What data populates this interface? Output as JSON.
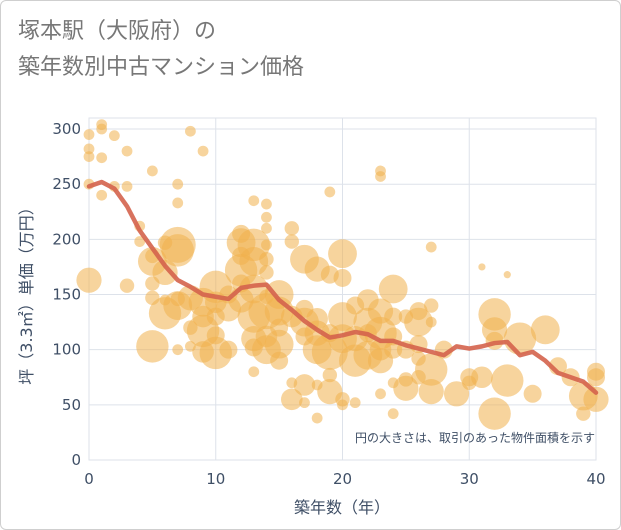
{
  "chart_data": {
    "type": "scatter",
    "title_line1": "塚本駅（大阪府）の",
    "title_line2": "築年数別中古マンション価格",
    "xlabel": "築年数（年）",
    "ylabel": "坪（3.3㎡）単価（万円）",
    "note": "円の大きさは、取引のあった物件面積を示す",
    "xlim": [
      0,
      40
    ],
    "ylim": [
      0,
      310
    ],
    "x_ticks": [
      0,
      10,
      20,
      30,
      40
    ],
    "y_ticks": [
      0,
      50,
      100,
      150,
      200,
      250,
      300
    ],
    "grid": true,
    "colors": {
      "bubble": "#f0b04c",
      "trend": "#d4634c",
      "grid": "#dde2ea",
      "text": "#3f4f66"
    },
    "trend_line": {
      "x": [
        0,
        1,
        2,
        3,
        4,
        5,
        6,
        7,
        8,
        9,
        10,
        11,
        12,
        13,
        14,
        15,
        16,
        17,
        18,
        19,
        20,
        21,
        22,
        23,
        24,
        25,
        26,
        27,
        28,
        29,
        30,
        31,
        32,
        33,
        34,
        35,
        36,
        37,
        38,
        39,
        40
      ],
      "y": [
        248,
        252,
        246,
        230,
        208,
        192,
        176,
        163,
        157,
        150,
        148,
        146,
        156,
        158,
        159,
        145,
        136,
        126,
        118,
        111,
        113,
        116,
        114,
        108,
        108,
        104,
        101,
        98,
        95,
        103,
        101,
        103,
        106,
        107,
        95,
        98,
        90,
        79,
        75,
        71,
        61
      ]
    },
    "points": [
      {
        "x": 0,
        "y": 295,
        "s": 3
      },
      {
        "x": 0,
        "y": 282,
        "s": 3
      },
      {
        "x": 0,
        "y": 275,
        "s": 3
      },
      {
        "x": 0,
        "y": 250,
        "s": 3
      },
      {
        "x": 0,
        "y": 163,
        "s": 7
      },
      {
        "x": 1,
        "y": 304,
        "s": 3
      },
      {
        "x": 1,
        "y": 300,
        "s": 3
      },
      {
        "x": 1,
        "y": 274,
        "s": 3
      },
      {
        "x": 1,
        "y": 240,
        "s": 3
      },
      {
        "x": 2,
        "y": 294,
        "s": 3
      },
      {
        "x": 2,
        "y": 248,
        "s": 3
      },
      {
        "x": 3,
        "y": 280,
        "s": 3
      },
      {
        "x": 3,
        "y": 248,
        "s": 3
      },
      {
        "x": 3,
        "y": 158,
        "s": 4
      },
      {
        "x": 4,
        "y": 212,
        "s": 3
      },
      {
        "x": 4,
        "y": 198,
        "s": 3
      },
      {
        "x": 5,
        "y": 262,
        "s": 3
      },
      {
        "x": 5,
        "y": 185,
        "s": 4
      },
      {
        "x": 5,
        "y": 180,
        "s": 8
      },
      {
        "x": 5,
        "y": 160,
        "s": 4
      },
      {
        "x": 5,
        "y": 147,
        "s": 4
      },
      {
        "x": 5,
        "y": 103,
        "s": 9
      },
      {
        "x": 6,
        "y": 197,
        "s": 4
      },
      {
        "x": 6,
        "y": 170,
        "s": 7
      },
      {
        "x": 6,
        "y": 145,
        "s": 3
      },
      {
        "x": 6,
        "y": 133,
        "s": 9
      },
      {
        "x": 7,
        "y": 250,
        "s": 3
      },
      {
        "x": 7,
        "y": 233,
        "s": 3
      },
      {
        "x": 7,
        "y": 195,
        "s": 10
      },
      {
        "x": 7,
        "y": 190,
        "s": 9
      },
      {
        "x": 7,
        "y": 146,
        "s": 4
      },
      {
        "x": 7,
        "y": 140,
        "s": 8
      },
      {
        "x": 7,
        "y": 100,
        "s": 3
      },
      {
        "x": 8,
        "y": 298,
        "s": 3
      },
      {
        "x": 8,
        "y": 147,
        "s": 7
      },
      {
        "x": 8,
        "y": 120,
        "s": 4
      },
      {
        "x": 8,
        "y": 103,
        "s": 3
      },
      {
        "x": 9,
        "y": 280,
        "s": 3
      },
      {
        "x": 9,
        "y": 143,
        "s": 8
      },
      {
        "x": 9,
        "y": 130,
        "s": 6
      },
      {
        "x": 9,
        "y": 117,
        "s": 9
      },
      {
        "x": 9,
        "y": 98,
        "s": 6
      },
      {
        "x": 10,
        "y": 157,
        "s": 9
      },
      {
        "x": 10,
        "y": 143,
        "s": 6
      },
      {
        "x": 10,
        "y": 130,
        "s": 5
      },
      {
        "x": 10,
        "y": 113,
        "s": 5
      },
      {
        "x": 10,
        "y": 97,
        "s": 9
      },
      {
        "x": 11,
        "y": 150,
        "s": 5
      },
      {
        "x": 11,
        "y": 137,
        "s": 7
      },
      {
        "x": 11,
        "y": 100,
        "s": 5
      },
      {
        "x": 12,
        "y": 205,
        "s": 5
      },
      {
        "x": 12,
        "y": 197,
        "s": 8
      },
      {
        "x": 12,
        "y": 185,
        "s": 5
      },
      {
        "x": 12,
        "y": 172,
        "s": 9
      },
      {
        "x": 12,
        "y": 160,
        "s": 5
      },
      {
        "x": 12,
        "y": 145,
        "s": 7
      },
      {
        "x": 13,
        "y": 235,
        "s": 3
      },
      {
        "x": 13,
        "y": 195,
        "s": 9
      },
      {
        "x": 13,
        "y": 180,
        "s": 8
      },
      {
        "x": 13,
        "y": 155,
        "s": 8
      },
      {
        "x": 13,
        "y": 130,
        "s": 9
      },
      {
        "x": 13,
        "y": 110,
        "s": 7
      },
      {
        "x": 13,
        "y": 102,
        "s": 5
      },
      {
        "x": 13,
        "y": 80,
        "s": 3
      },
      {
        "x": 14,
        "y": 232,
        "s": 3
      },
      {
        "x": 14,
        "y": 220,
        "s": 3
      },
      {
        "x": 14,
        "y": 210,
        "s": 3
      },
      {
        "x": 14,
        "y": 195,
        "s": 3
      },
      {
        "x": 14,
        "y": 182,
        "s": 4
      },
      {
        "x": 14,
        "y": 170,
        "s": 4
      },
      {
        "x": 14,
        "y": 148,
        "s": 4
      },
      {
        "x": 14,
        "y": 135,
        "s": 10
      },
      {
        "x": 14,
        "y": 112,
        "s": 6
      },
      {
        "x": 14,
        "y": 100,
        "s": 8
      },
      {
        "x": 15,
        "y": 150,
        "s": 8
      },
      {
        "x": 15,
        "y": 135,
        "s": 8
      },
      {
        "x": 15,
        "y": 120,
        "s": 5
      },
      {
        "x": 15,
        "y": 105,
        "s": 8
      },
      {
        "x": 15,
        "y": 90,
        "s": 5
      },
      {
        "x": 16,
        "y": 210,
        "s": 4
      },
      {
        "x": 16,
        "y": 198,
        "s": 4
      },
      {
        "x": 16,
        "y": 130,
        "s": 6
      },
      {
        "x": 16,
        "y": 70,
        "s": 3
      },
      {
        "x": 16,
        "y": 55,
        "s": 6
      },
      {
        "x": 17,
        "y": 182,
        "s": 8
      },
      {
        "x": 17,
        "y": 137,
        "s": 5
      },
      {
        "x": 17,
        "y": 125,
        "s": 8
      },
      {
        "x": 17,
        "y": 112,
        "s": 5
      },
      {
        "x": 17,
        "y": 68,
        "s": 6
      },
      {
        "x": 17,
        "y": 52,
        "s": 3
      },
      {
        "x": 18,
        "y": 173,
        "s": 7
      },
      {
        "x": 18,
        "y": 128,
        "s": 6
      },
      {
        "x": 18,
        "y": 115,
        "s": 7
      },
      {
        "x": 18,
        "y": 100,
        "s": 8
      },
      {
        "x": 18,
        "y": 68,
        "s": 3
      },
      {
        "x": 18,
        "y": 38,
        "s": 3
      },
      {
        "x": 19,
        "y": 243,
        "s": 3
      },
      {
        "x": 19,
        "y": 168,
        "s": 5
      },
      {
        "x": 19,
        "y": 115,
        "s": 5
      },
      {
        "x": 19,
        "y": 98,
        "s": 10
      },
      {
        "x": 19,
        "y": 77,
        "s": 4
      },
      {
        "x": 19,
        "y": 62,
        "s": 7
      },
      {
        "x": 20,
        "y": 187,
        "s": 8
      },
      {
        "x": 20,
        "y": 165,
        "s": 5
      },
      {
        "x": 20,
        "y": 130,
        "s": 8
      },
      {
        "x": 20,
        "y": 110,
        "s": 8
      },
      {
        "x": 20,
        "y": 55,
        "s": 4
      },
      {
        "x": 20,
        "y": 50,
        "s": 3
      },
      {
        "x": 21,
        "y": 140,
        "s": 5
      },
      {
        "x": 21,
        "y": 110,
        "s": 7
      },
      {
        "x": 21,
        "y": 90,
        "s": 9
      },
      {
        "x": 21,
        "y": 52,
        "s": 3
      },
      {
        "x": 22,
        "y": 145,
        "s": 6
      },
      {
        "x": 22,
        "y": 125,
        "s": 8
      },
      {
        "x": 22,
        "y": 115,
        "s": 5
      },
      {
        "x": 22,
        "y": 95,
        "s": 8
      },
      {
        "x": 23,
        "y": 262,
        "s": 3
      },
      {
        "x": 23,
        "y": 257,
        "s": 3
      },
      {
        "x": 23,
        "y": 135,
        "s": 7
      },
      {
        "x": 23,
        "y": 115,
        "s": 9
      },
      {
        "x": 23,
        "y": 100,
        "s": 6
      },
      {
        "x": 23,
        "y": 90,
        "s": 7
      },
      {
        "x": 23,
        "y": 60,
        "s": 3
      },
      {
        "x": 24,
        "y": 155,
        "s": 8
      },
      {
        "x": 24,
        "y": 130,
        "s": 5
      },
      {
        "x": 24,
        "y": 112,
        "s": 5
      },
      {
        "x": 24,
        "y": 100,
        "s": 5
      },
      {
        "x": 24,
        "y": 70,
        "s": 3
      },
      {
        "x": 24,
        "y": 42,
        "s": 3
      },
      {
        "x": 25,
        "y": 130,
        "s": 4
      },
      {
        "x": 25,
        "y": 100,
        "s": 5
      },
      {
        "x": 25,
        "y": 73,
        "s": 4
      },
      {
        "x": 25,
        "y": 65,
        "s": 7
      },
      {
        "x": 26,
        "y": 135,
        "s": 5
      },
      {
        "x": 26,
        "y": 125,
        "s": 8
      },
      {
        "x": 26,
        "y": 105,
        "s": 5
      },
      {
        "x": 26,
        "y": 92,
        "s": 4
      },
      {
        "x": 26,
        "y": 75,
        "s": 4
      },
      {
        "x": 27,
        "y": 193,
        "s": 3
      },
      {
        "x": 27,
        "y": 140,
        "s": 4
      },
      {
        "x": 27,
        "y": 125,
        "s": 3
      },
      {
        "x": 27,
        "y": 82,
        "s": 9
      },
      {
        "x": 27,
        "y": 62,
        "s": 7
      },
      {
        "x": 28,
        "y": 100,
        "s": 5
      },
      {
        "x": 29,
        "y": 60,
        "s": 7
      },
      {
        "x": 30,
        "y": 75,
        "s": 5
      },
      {
        "x": 30,
        "y": 70,
        "s": 4
      },
      {
        "x": 31,
        "y": 175,
        "s": 2
      },
      {
        "x": 31,
        "y": 75,
        "s": 6
      },
      {
        "x": 32,
        "y": 132,
        "s": 9
      },
      {
        "x": 32,
        "y": 118,
        "s": 7
      },
      {
        "x": 32,
        "y": 108,
        "s": 5
      },
      {
        "x": 32,
        "y": 42,
        "s": 9
      },
      {
        "x": 33,
        "y": 168,
        "s": 2
      },
      {
        "x": 33,
        "y": 72,
        "s": 9
      },
      {
        "x": 34,
        "y": 110,
        "s": 9
      },
      {
        "x": 35,
        "y": 60,
        "s": 5
      },
      {
        "x": 36,
        "y": 118,
        "s": 8
      },
      {
        "x": 37,
        "y": 85,
        "s": 5
      },
      {
        "x": 38,
        "y": 75,
        "s": 5
      },
      {
        "x": 39,
        "y": 58,
        "s": 8
      },
      {
        "x": 39,
        "y": 42,
        "s": 4
      },
      {
        "x": 40,
        "y": 80,
        "s": 5
      },
      {
        "x": 40,
        "y": 75,
        "s": 5
      },
      {
        "x": 40,
        "y": 55,
        "s": 7
      }
    ]
  }
}
